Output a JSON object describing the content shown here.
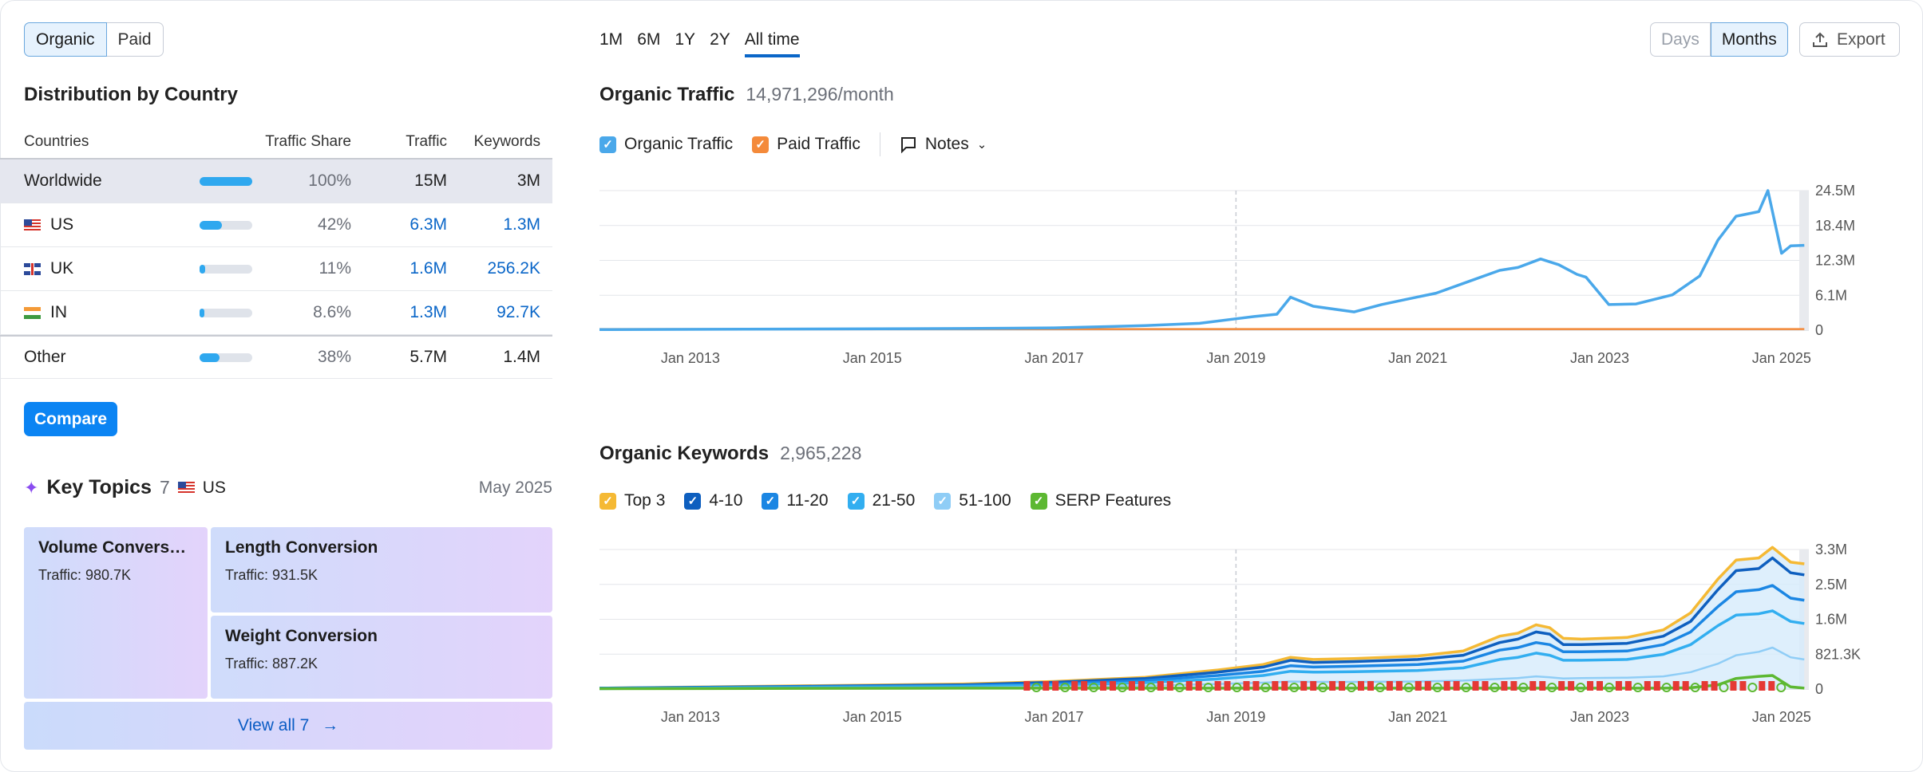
{
  "toggle": {
    "organic": "Organic",
    "paid": "Paid"
  },
  "distribution": {
    "title": "Distribution by Country",
    "headers": {
      "countries": "Countries",
      "share": "Traffic Share",
      "traffic": "Traffic",
      "keywords": "Keywords"
    },
    "rows": [
      {
        "name": "Worldwide",
        "share": "100%",
        "share_fraction": 1.0,
        "traffic": "15M",
        "keywords": "3M"
      },
      {
        "name": "US",
        "share": "42%",
        "share_fraction": 0.42,
        "traffic": "6.3M",
        "keywords": "1.3M"
      },
      {
        "name": "UK",
        "share": "11%",
        "share_fraction": 0.11,
        "traffic": "1.6M",
        "keywords": "256.2K"
      },
      {
        "name": "IN",
        "share": "8.6%",
        "share_fraction": 0.086,
        "traffic": "1.3M",
        "keywords": "92.7K"
      },
      {
        "name": "Other",
        "share": "38%",
        "share_fraction": 0.38,
        "traffic": "5.7M",
        "keywords": "1.4M"
      }
    ],
    "compare_label": "Compare"
  },
  "key_topics": {
    "title": "Key Topics",
    "count": "7",
    "country": "US",
    "date": "May 2025",
    "topics": [
      {
        "name": "Volume Convers…",
        "traffic": "Traffic: 980.7K"
      },
      {
        "name": "Length Conversion",
        "traffic": "Traffic: 931.5K"
      },
      {
        "name": "Weight Conversion",
        "traffic": "Traffic: 887.2K"
      }
    ],
    "view_all": "View all 7"
  },
  "ranges": [
    "1M",
    "6M",
    "1Y",
    "2Y",
    "All time"
  ],
  "active_range": "All time",
  "granularity": {
    "days": "Days",
    "months": "Months"
  },
  "export_label": "Export",
  "traffic_chart": {
    "title": "Organic Traffic",
    "value": "14,971,296/month",
    "legend": {
      "organic": "Organic Traffic",
      "paid": "Paid Traffic",
      "notes": "Notes"
    },
    "colors": {
      "organic": "#4aa8ea",
      "paid": "#f48a3a"
    }
  },
  "keywords_chart": {
    "title": "Organic Keywords",
    "value": "2,965,228",
    "legend": [
      "Top 3",
      "4-10",
      "11-20",
      "21-50",
      "51-100",
      "SERP Features"
    ],
    "colors": [
      "#f5b934",
      "#0e5fbf",
      "#1b86e3",
      "#32aef0",
      "#8fcdf6",
      "#5db832"
    ]
  },
  "chart_data": [
    {
      "type": "line",
      "title": "Organic Traffic",
      "x_ticks": [
        "Jan 2013",
        "Jan 2015",
        "Jan 2017",
        "Jan 2019",
        "Jan 2021",
        "Jan 2023",
        "Jan 2025"
      ],
      "y_ticks": [
        "24.5M",
        "18.4M",
        "12.3M",
        "6.1M",
        "0"
      ],
      "ylim": [
        0,
        24.5
      ],
      "xlim": [
        2012.0,
        2025.3
      ],
      "series": [
        {
          "name": "Organic Traffic",
          "x": [
            2012.0,
            2014.0,
            2016.0,
            2017.0,
            2018.0,
            2018.6,
            2019.0,
            2019.2,
            2019.45,
            2019.6,
            2019.85,
            2020.3,
            2020.6,
            2020.9,
            2021.2,
            2021.55,
            2021.9,
            2022.1,
            2022.35,
            2022.55,
            2022.75,
            2022.85,
            2023.1,
            2023.4,
            2023.8,
            2024.1,
            2024.3,
            2024.5,
            2024.75,
            2024.85,
            2025.0,
            2025.1,
            2025.25
          ],
          "y": [
            0.1,
            0.2,
            0.3,
            0.4,
            0.8,
            1.2,
            2.0,
            2.4,
            2.8,
            5.8,
            4.2,
            3.2,
            4.5,
            5.5,
            6.5,
            8.5,
            10.5,
            11.0,
            12.5,
            11.5,
            9.8,
            9.3,
            4.5,
            4.6,
            6.2,
            9.5,
            15.8,
            20.0,
            20.8,
            24.5,
            13.5,
            14.8,
            14.9
          ]
        },
        {
          "name": "Paid Traffic",
          "x": [
            2012.0,
            2025.25
          ],
          "y": [
            0.05,
            0.05
          ]
        }
      ]
    },
    {
      "type": "area",
      "title": "Organic Keywords",
      "x_ticks": [
        "Jan 2013",
        "Jan 2015",
        "Jan 2017",
        "Jan 2019",
        "Jan 2021",
        "Jan 2023",
        "Jan 2025"
      ],
      "y_ticks": [
        "3.3M",
        "2.5M",
        "1.6M",
        "821.3K",
        "0"
      ],
      "ylim": [
        0,
        3.3
      ],
      "xlim": [
        2012.0,
        2025.3
      ],
      "x": [
        2012.0,
        2016.0,
        2017.0,
        2018.0,
        2018.8,
        2019.3,
        2019.6,
        2019.85,
        2020.3,
        2021.0,
        2021.5,
        2021.9,
        2022.1,
        2022.3,
        2022.45,
        2022.6,
        2022.8,
        2023.3,
        2023.7,
        2024.0,
        2024.3,
        2024.5,
        2024.75,
        2024.9,
        2025.1,
        2025.25
      ],
      "series": [
        {
          "name": "Top 3",
          "values": [
            0.02,
            0.12,
            0.18,
            0.28,
            0.45,
            0.58,
            0.75,
            0.7,
            0.72,
            0.78,
            0.9,
            1.25,
            1.32,
            1.52,
            1.45,
            1.2,
            1.18,
            1.22,
            1.4,
            1.8,
            2.6,
            3.05,
            3.1,
            3.35,
            3.0,
            2.96
          ]
        },
        {
          "name": "4-10",
          "values": [
            0.02,
            0.1,
            0.16,
            0.25,
            0.4,
            0.52,
            0.68,
            0.63,
            0.65,
            0.7,
            0.8,
            1.1,
            1.18,
            1.35,
            1.3,
            1.05,
            1.05,
            1.08,
            1.25,
            1.6,
            2.35,
            2.8,
            2.85,
            3.1,
            2.75,
            2.7
          ]
        },
        {
          "name": "11-20",
          "values": [
            0.02,
            0.08,
            0.12,
            0.2,
            0.32,
            0.42,
            0.55,
            0.52,
            0.54,
            0.58,
            0.66,
            0.92,
            0.98,
            1.1,
            1.05,
            0.88,
            0.88,
            0.9,
            1.05,
            1.35,
            1.95,
            2.3,
            2.35,
            2.45,
            2.15,
            2.1
          ]
        },
        {
          "name": "21-50",
          "values": [
            0.01,
            0.06,
            0.09,
            0.15,
            0.24,
            0.32,
            0.42,
            0.4,
            0.41,
            0.44,
            0.5,
            0.7,
            0.75,
            0.85,
            0.8,
            0.68,
            0.68,
            0.7,
            0.82,
            1.05,
            1.5,
            1.75,
            1.78,
            1.85,
            1.6,
            1.55
          ]
        },
        {
          "name": "51-100",
          "values": [
            0.01,
            0.03,
            0.05,
            0.08,
            0.12,
            0.15,
            0.18,
            0.17,
            0.17,
            0.18,
            0.2,
            0.24,
            0.26,
            0.3,
            0.28,
            0.25,
            0.26,
            0.27,
            0.3,
            0.4,
            0.6,
            0.8,
            0.88,
            0.98,
            0.75,
            0.7
          ]
        },
        {
          "name": "SERP Features",
          "values": [
            0.01,
            0.02,
            0.02,
            0.02,
            0.02,
            0.02,
            0.02,
            0.02,
            0.02,
            0.02,
            0.02,
            0.02,
            0.02,
            0.02,
            0.02,
            0.02,
            0.02,
            0.02,
            0.02,
            0.03,
            0.1,
            0.25,
            0.3,
            0.32,
            0.05,
            0.02
          ]
        }
      ]
    }
  ]
}
